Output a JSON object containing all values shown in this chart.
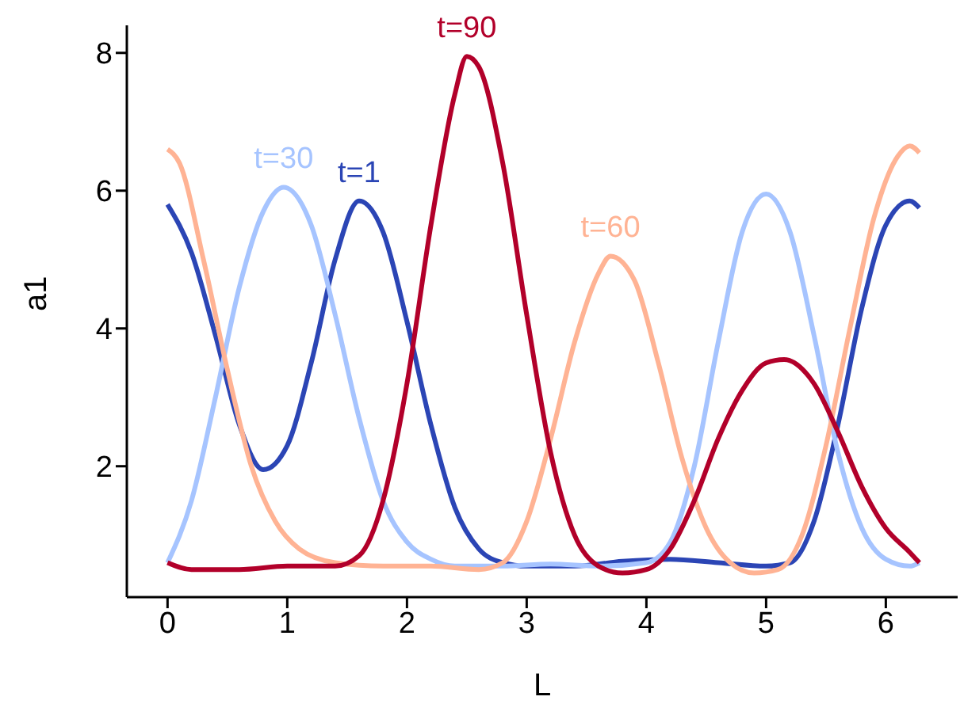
{
  "chart_data": {
    "type": "line",
    "xlabel": "L",
    "ylabel": "a1",
    "xlim": [
      -0.34,
      6.6
    ],
    "ylim": [
      0.1,
      8.4
    ],
    "xticks": [
      0,
      1,
      2,
      3,
      4,
      5,
      6
    ],
    "yticks": [
      2,
      4,
      6,
      8
    ],
    "grid": false,
    "legend": false,
    "marker": "none",
    "line_style": "solid",
    "series": [
      {
        "name": "t=1",
        "color": "#2b45b5",
        "x": [
          0,
          0.2,
          0.4,
          0.6,
          0.8,
          1.0,
          1.2,
          1.4,
          1.6,
          1.8,
          2.0,
          2.2,
          2.4,
          2.6,
          2.8,
          3.0,
          3.4,
          3.8,
          4.2,
          4.6,
          5.0,
          5.2,
          5.4,
          5.6,
          5.8,
          6.0,
          6.2,
          6.28
        ],
        "values": [
          5.8,
          5.1,
          3.9,
          2.6,
          1.95,
          2.3,
          3.5,
          5.0,
          5.85,
          5.4,
          4.1,
          2.6,
          1.4,
          0.8,
          0.6,
          0.55,
          0.55,
          0.62,
          0.65,
          0.6,
          0.55,
          0.6,
          1.2,
          2.6,
          4.3,
          5.5,
          5.85,
          5.75
        ]
      },
      {
        "name": "t=30",
        "color": "#a6c4ff",
        "x": [
          0,
          0.2,
          0.4,
          0.6,
          0.8,
          0.97,
          1.2,
          1.4,
          1.6,
          1.8,
          2.0,
          2.2,
          2.4,
          2.8,
          3.2,
          3.6,
          4.0,
          4.2,
          4.4,
          4.6,
          4.8,
          5.0,
          5.2,
          5.4,
          5.6,
          5.8,
          6.0,
          6.2,
          6.28
        ],
        "values": [
          0.6,
          1.5,
          3.0,
          4.6,
          5.7,
          6.05,
          5.5,
          4.2,
          2.7,
          1.5,
          0.9,
          0.65,
          0.55,
          0.55,
          0.58,
          0.55,
          0.6,
          0.9,
          2.0,
          3.8,
          5.4,
          5.95,
          5.4,
          3.9,
          2.2,
          1.1,
          0.65,
          0.55,
          0.6
        ]
      },
      {
        "name": "t=60",
        "color": "#ffb394",
        "x": [
          0,
          0.1,
          0.3,
          0.5,
          0.7,
          0.9,
          1.1,
          1.4,
          1.8,
          2.2,
          2.6,
          2.8,
          3.0,
          3.2,
          3.4,
          3.6,
          3.7,
          3.9,
          4.1,
          4.3,
          4.5,
          4.7,
          4.9,
          5.1,
          5.3,
          5.5,
          5.7,
          5.9,
          6.1,
          6.2,
          6.28
        ],
        "values": [
          6.6,
          6.4,
          5.0,
          3.4,
          2.0,
          1.2,
          0.8,
          0.6,
          0.55,
          0.55,
          0.5,
          0.6,
          1.2,
          2.4,
          3.8,
          4.8,
          5.05,
          4.7,
          3.5,
          2.1,
          1.1,
          0.6,
          0.45,
          0.5,
          1.0,
          2.3,
          4.0,
          5.6,
          6.5,
          6.65,
          6.55
        ]
      },
      {
        "name": "t=90",
        "color": "#b2002a",
        "x": [
          0,
          0.2,
          0.6,
          1.0,
          1.4,
          1.6,
          1.8,
          2.0,
          2.2,
          2.4,
          2.5,
          2.6,
          2.8,
          3.0,
          3.2,
          3.4,
          3.6,
          3.8,
          4.0,
          4.2,
          4.4,
          4.6,
          4.8,
          5.0,
          5.15,
          5.4,
          5.6,
          5.8,
          6.0,
          6.2,
          6.28
        ],
        "values": [
          0.6,
          0.5,
          0.5,
          0.55,
          0.55,
          0.7,
          1.5,
          3.2,
          5.5,
          7.4,
          7.95,
          7.8,
          6.4,
          4.2,
          2.2,
          1.0,
          0.55,
          0.45,
          0.5,
          0.8,
          1.5,
          2.4,
          3.1,
          3.5,
          3.55,
          3.2,
          2.5,
          1.7,
          1.1,
          0.75,
          0.6
        ]
      }
    ]
  }
}
